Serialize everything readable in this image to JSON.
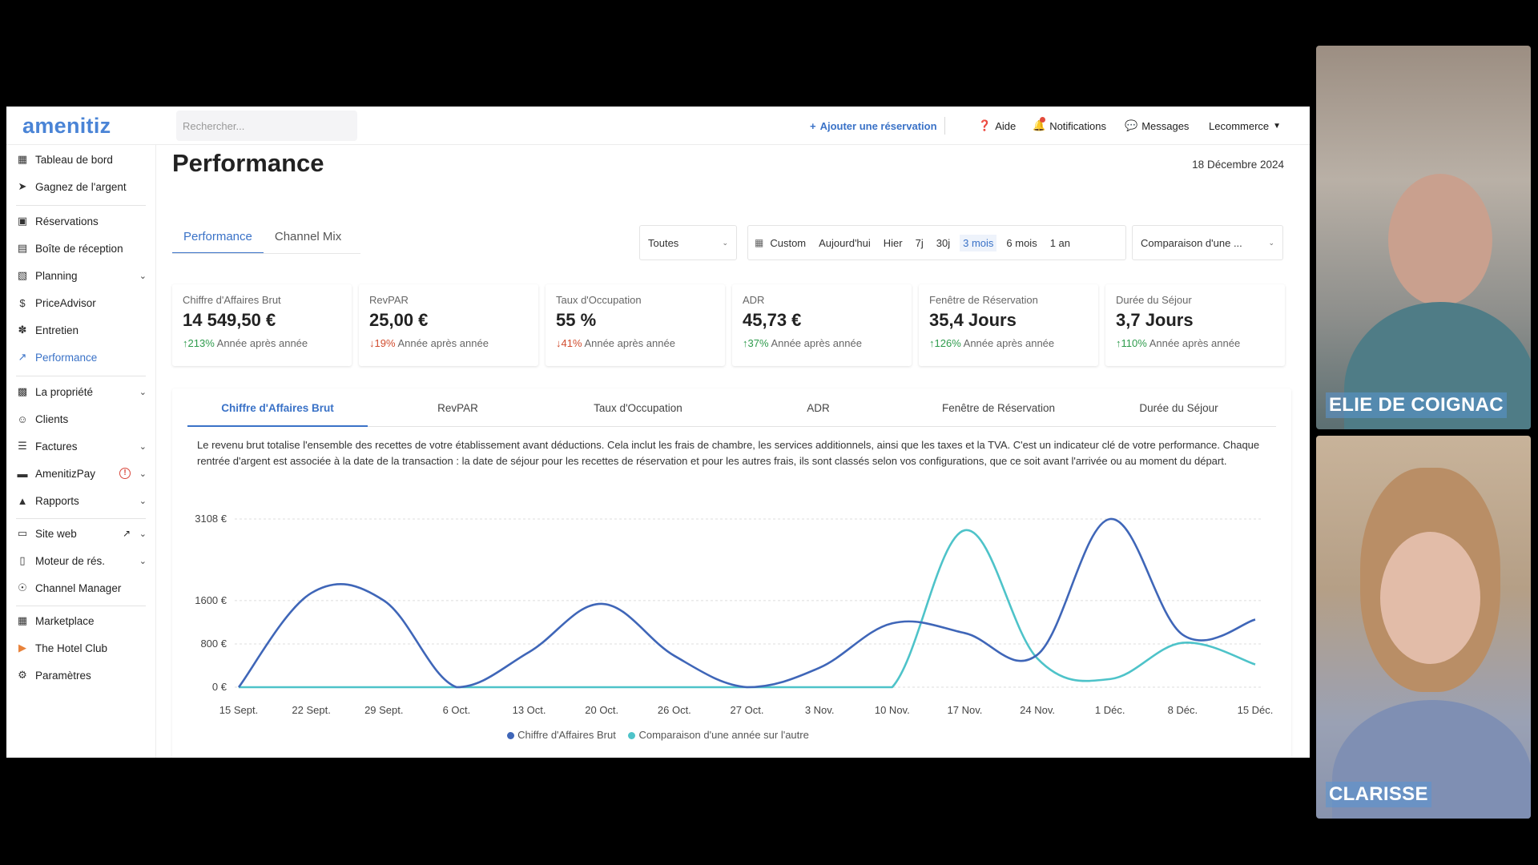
{
  "app": {
    "logo": "amenitiz",
    "search_placeholder": "Rechercher..."
  },
  "topbar": {
    "add_reservation": "Ajouter une réservation",
    "help": "Aide",
    "notifications": "Notifications",
    "messages": "Messages",
    "account": "Lecommerce"
  },
  "sidebar": {
    "items": [
      {
        "label": "Tableau de bord",
        "icon": "dashboard-icon"
      },
      {
        "label": "Gagnez de l'argent",
        "icon": "megaphone-icon"
      },
      {
        "label": "Réservations",
        "icon": "suitcase-icon"
      },
      {
        "label": "Boîte de réception",
        "icon": "inbox-icon"
      },
      {
        "label": "Planning",
        "icon": "calendar-icon"
      },
      {
        "label": "PriceAdvisor",
        "icon": "dollar-icon"
      },
      {
        "label": "Entretien",
        "icon": "broom-icon"
      },
      {
        "label": "Performance",
        "icon": "trend-icon"
      },
      {
        "label": "La propriété",
        "icon": "building-icon"
      },
      {
        "label": "Clients",
        "icon": "clients-icon"
      },
      {
        "label": "Factures",
        "icon": "invoice-icon"
      },
      {
        "label": "AmenitizPay",
        "icon": "card-icon"
      },
      {
        "label": "Rapports",
        "icon": "report-icon"
      },
      {
        "label": "Site web",
        "icon": "website-icon"
      },
      {
        "label": "Moteur de rés.",
        "icon": "engine-icon"
      },
      {
        "label": "Channel Manager",
        "icon": "channel-icon"
      },
      {
        "label": "Marketplace",
        "icon": "grid-icon"
      },
      {
        "label": "The Hotel Club",
        "icon": "hotel-club-icon"
      },
      {
        "label": "Paramètres",
        "icon": "gear-icon"
      }
    ]
  },
  "page": {
    "title": "Performance",
    "date": "18 Décembre 2024",
    "tabs": [
      "Performance",
      "Channel Mix"
    ],
    "filter_all": "Toutes",
    "periods": [
      "Custom",
      "Aujourd'hui",
      "Hier",
      "7j",
      "30j",
      "3 mois",
      "6 mois",
      "1 an"
    ],
    "selected_period": "3 mois",
    "comparison": "Comparaison d'une ..."
  },
  "kpis": [
    {
      "label": "Chiffre d'Affaires Brut",
      "value": "14 549,50 €",
      "change": "213%",
      "direction": "up",
      "suffix": "Année après année"
    },
    {
      "label": "RevPAR",
      "value": "25,00 €",
      "change": "19%",
      "direction": "down",
      "suffix": "Année après année"
    },
    {
      "label": "Taux d'Occupation",
      "value": "55 %",
      "change": "41%",
      "direction": "down",
      "suffix": "Année après année"
    },
    {
      "label": "ADR",
      "value": "45,73 €",
      "change": "37%",
      "direction": "up",
      "suffix": "Année après année"
    },
    {
      "label": "Fenêtre de Réservation",
      "value": "35,4 Jours",
      "change": "126%",
      "direction": "up",
      "suffix": "Année après année"
    },
    {
      "label": "Durée du Séjour",
      "value": "3,7 Jours",
      "change": "110%",
      "direction": "up",
      "suffix": "Année après année"
    }
  ],
  "metric_tabs": [
    "Chiffre d'Affaires Brut",
    "RevPAR",
    "Taux d'Occupation",
    "ADR",
    "Fenêtre de Réservation",
    "Durée du Séjour"
  ],
  "description": "Le revenu brut totalise l'ensemble des recettes de votre établissement avant déductions. Cela inclut les frais de chambre, les services additionnels, ainsi que les taxes et la TVA. C'est un indicateur clé de votre performance. Chaque rentrée d'argent est associée à la date de la transaction : la date de séjour pour les recettes de réservation et pour les autres frais, ils sont classés selon vos configurations, que ce soit avant l'arrivée ou au moment du départ.",
  "colors": {
    "accent": "#3a72c7",
    "series_main": "#3f66b8",
    "series_compare": "#4ec3c9",
    "positive": "#2e9b4c",
    "negative": "#d14d2f"
  },
  "chart_data": {
    "type": "line",
    "categories": [
      "15 Sept.",
      "22 Sept.",
      "29 Sept.",
      "6 Oct.",
      "13 Oct.",
      "20 Oct.",
      "26 Oct.",
      "27 Oct.",
      "3 Nov.",
      "10 Nov.",
      "17 Nov.",
      "24 Nov.",
      "1 Déc.",
      "8 Déc.",
      "15 Déc."
    ],
    "y_ticks": [
      {
        "label": "0 €",
        "value": 0
      },
      {
        "label": "800 €",
        "value": 800
      },
      {
        "label": "1600 €",
        "value": 1600
      },
      {
        "label": "3108 €",
        "value": 3108
      }
    ],
    "ylim": [
      0,
      3108
    ],
    "series": [
      {
        "name": "Chiffre d'Affaires Brut",
        "color": "#3f66b8",
        "values": [
          0,
          1740,
          1600,
          0,
          650,
          1540,
          580,
          0,
          360,
          1180,
          1000,
          600,
          3108,
          970,
          1250
        ]
      },
      {
        "name": "Comparaison d'une année sur l'autre",
        "color": "#4ec3c9",
        "values": [
          0,
          0,
          0,
          0,
          0,
          0,
          0,
          0,
          0,
          0,
          2900,
          530,
          150,
          820,
          420
        ]
      }
    ],
    "grid": true,
    "legend": "bottom"
  },
  "participants": [
    {
      "name": "ELIE DE COIGNAC"
    },
    {
      "name": "CLARISSE"
    }
  ]
}
